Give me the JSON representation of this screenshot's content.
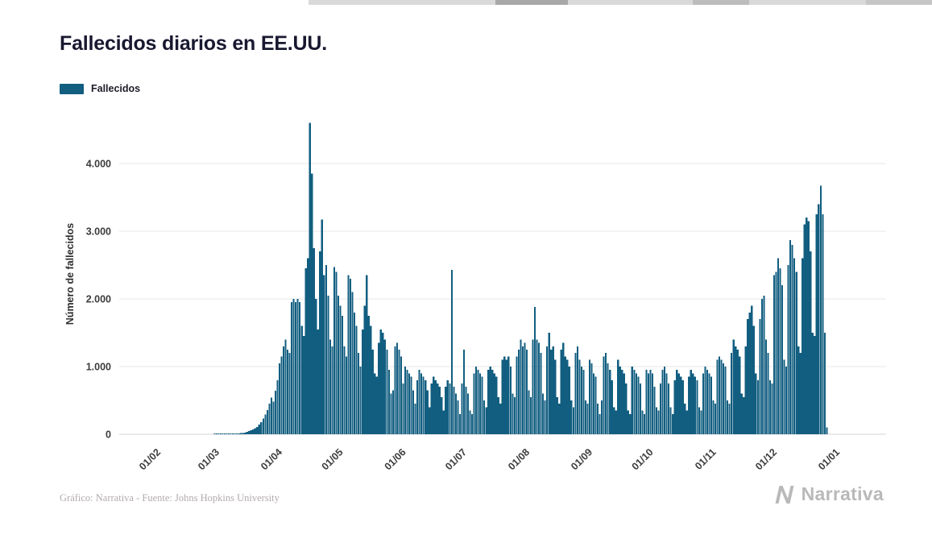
{
  "page": {
    "title": "Fallecidos diarios en EE.UU.",
    "footer_credit": "Gráfico: Narrativa - Fuente: Johns Hopkins University",
    "brand": "Narrativa"
  },
  "legend": {
    "label": "Fallecidos",
    "color": "#125e80"
  },
  "icons": {
    "brand_icon": "narrativa-n-icon"
  },
  "chart_data": {
    "type": "bar",
    "title": "Fallecidos diarios en EE.UU.",
    "series_name": "Fallecidos",
    "xlabel": "",
    "ylabel": "Número de fallecidos",
    "bar_color": "#125e80",
    "grid": true,
    "legend_position": "top-left",
    "ylim": [
      0,
      4600
    ],
    "start_date": "2020-01-22",
    "y_ticks": [
      {
        "value": 0,
        "label": "0"
      },
      {
        "value": 1000,
        "label": "1.000"
      },
      {
        "value": 2000,
        "label": "2.000"
      },
      {
        "value": 3000,
        "label": "3.000"
      },
      {
        "value": 4000,
        "label": "4.000"
      }
    ],
    "x_tick_labels": [
      "01/02",
      "01/03",
      "01/04",
      "01/05",
      "01/06",
      "01/07",
      "01/08",
      "01/09",
      "01/10",
      "01/11",
      "01/12",
      "01/01"
    ],
    "x_tick_day_indices": [
      10,
      39,
      70,
      100,
      131,
      161,
      192,
      223,
      253,
      284,
      314,
      345
    ],
    "months": [
      {
        "month": "2020-01 (22-31)",
        "values": [
          0,
          0,
          0,
          0,
          0,
          0,
          0,
          0,
          0,
          0
        ]
      },
      {
        "month": "2020-02",
        "values": [
          0,
          0,
          0,
          0,
          0,
          0,
          0,
          0,
          0,
          0,
          0,
          0,
          0,
          0,
          0,
          0,
          0,
          0,
          0,
          0,
          0,
          0,
          0,
          0,
          0,
          0,
          0,
          0,
          1
        ]
      },
      {
        "month": "2020-03",
        "values": [
          1,
          2,
          4,
          3,
          5,
          3,
          4,
          6,
          5,
          7,
          8,
          12,
          15,
          20,
          25,
          35,
          45,
          60,
          70,
          90,
          110,
          140,
          180,
          230,
          290,
          360,
          450,
          540,
          480,
          640,
          800
        ]
      },
      {
        "month": "2020-04",
        "values": [
          1050,
          1150,
          1300,
          1400,
          1250,
          1200,
          1950,
          2000,
          1950,
          2000,
          1950,
          1600,
          1450,
          2450,
          2600,
          4600,
          3850,
          2750,
          2000,
          1550,
          2700,
          3170,
          2350,
          2500,
          2050,
          1400,
          1300,
          2470,
          2400,
          2050
        ]
      },
      {
        "month": "2020-05",
        "values": [
          1900,
          1750,
          1300,
          1150,
          2350,
          2300,
          2100,
          1800,
          1600,
          1200,
          1000,
          1550,
          1900,
          2350,
          1750,
          1600,
          1250,
          900,
          850,
          1350,
          1550,
          1500,
          1400,
          1250,
          950,
          600,
          650,
          1300,
          1350,
          1250,
          1150
        ]
      },
      {
        "month": "2020-06",
        "values": [
          750,
          1000,
          950,
          900,
          850,
          650,
          450,
          800,
          950,
          900,
          850,
          800,
          650,
          400,
          750,
          850,
          800,
          750,
          700,
          550,
          350,
          700,
          800,
          750,
          2430,
          700,
          600,
          500,
          300,
          750
        ]
      },
      {
        "month": "2020-07",
        "values": [
          1250,
          700,
          600,
          350,
          300,
          900,
          1000,
          950,
          900,
          850,
          500,
          400,
          950,
          1000,
          950,
          900,
          850,
          550,
          450,
          1100,
          1150,
          1100,
          1150,
          1000,
          600,
          550,
          1150,
          1250,
          1400,
          1300,
          1350
        ]
      },
      {
        "month": "2020-08",
        "values": [
          1250,
          650,
          550,
          1400,
          1880,
          1400,
          1350,
          1200,
          600,
          500,
          1300,
          1500,
          1250,
          1300,
          1100,
          550,
          450,
          1250,
          1350,
          1150,
          1100,
          1000,
          500,
          400,
          1200,
          1300,
          1100,
          1000,
          950,
          500,
          450
        ]
      },
      {
        "month": "2020-09",
        "values": [
          1100,
          1050,
          900,
          850,
          450,
          300,
          500,
          1150,
          1200,
          1050,
          950,
          800,
          400,
          350,
          1100,
          1000,
          950,
          900,
          750,
          350,
          300,
          1000,
          950,
          900,
          850,
          750,
          350,
          300,
          950,
          900
        ]
      },
      {
        "month": "2020-10",
        "values": [
          950,
          900,
          700,
          400,
          350,
          750,
          950,
          1000,
          900,
          750,
          400,
          300,
          800,
          950,
          900,
          850,
          800,
          450,
          350,
          850,
          950,
          900,
          850,
          800,
          400,
          350,
          900,
          1000,
          950,
          900,
          850
        ]
      },
      {
        "month": "2020-11",
        "values": [
          500,
          450,
          1100,
          1150,
          1100,
          1050,
          1000,
          500,
          450,
          1200,
          1400,
          1300,
          1250,
          1150,
          600,
          550,
          1300,
          1700,
          1800,
          1900,
          1600,
          900,
          800,
          1700,
          2000,
          2050,
          1400,
          1200,
          800,
          750
        ]
      },
      {
        "month": "2020-12 (1-27)",
        "values": [
          2350,
          2400,
          2600,
          2450,
          2200,
          1100,
          1000,
          2500,
          2870,
          2800,
          2600,
          2400,
          1300,
          1200,
          2600,
          3100,
          3200,
          3150,
          2700,
          1500,
          1450,
          3250,
          3400,
          3670,
          3250,
          1500,
          100
        ]
      }
    ]
  }
}
